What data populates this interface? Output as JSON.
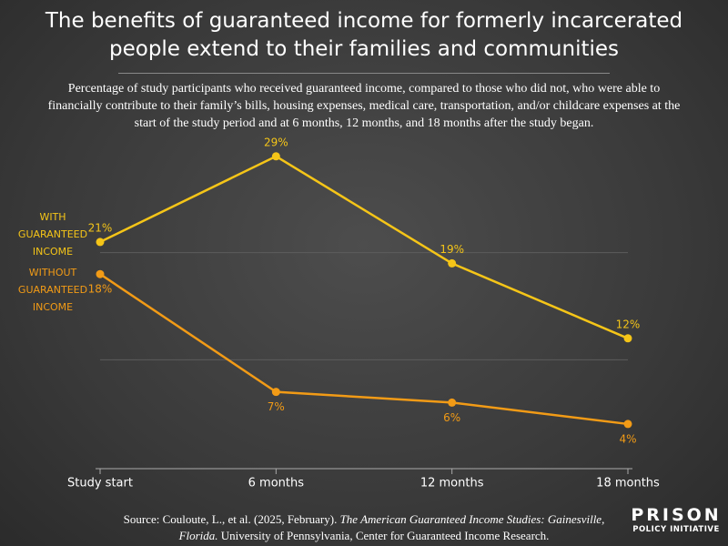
{
  "chart_data": {
    "type": "line",
    "title": "The benefits of guaranteed income for formerly incarcerated people extend to their families and communities",
    "subtitle": "Percentage of study participants who received guaranteed income, compared to those who did not, who were able to financially contribute to their family’s bills, housing expenses, medical care, transportation, and/or childcare expenses at the start of the study period and at 6 months, 12 months, and 18 months after the study began.",
    "categories": [
      "Study start",
      "6 months",
      "12 months",
      "18 months"
    ],
    "series": [
      {
        "name": "WITH GUARANTEED INCOME",
        "color": "#f5c518",
        "values": [
          21,
          29,
          19,
          12
        ],
        "value_labels": [
          "21%",
          "29%",
          "19%",
          "12%"
        ]
      },
      {
        "name": "WITHOUT GUARANTEED INCOME",
        "color": "#f29b16",
        "values": [
          18,
          7,
          6,
          4
        ],
        "value_labels": [
          "18%",
          "7%",
          "6%",
          "4%"
        ]
      }
    ],
    "ylim": [
      0,
      30
    ],
    "yticks": [
      10,
      20
    ],
    "grid": true,
    "source": {
      "before": "Source: Couloute, L., et al. (2025, February). ",
      "italic": "The American Guaranteed Income Studies: Gainesville, Florida.",
      "after": " University of Pennsylvania, Center for Guaranteed Income Research."
    },
    "logo": {
      "top": "PRISON",
      "bottom": "POLICY INITIATIVE"
    }
  }
}
